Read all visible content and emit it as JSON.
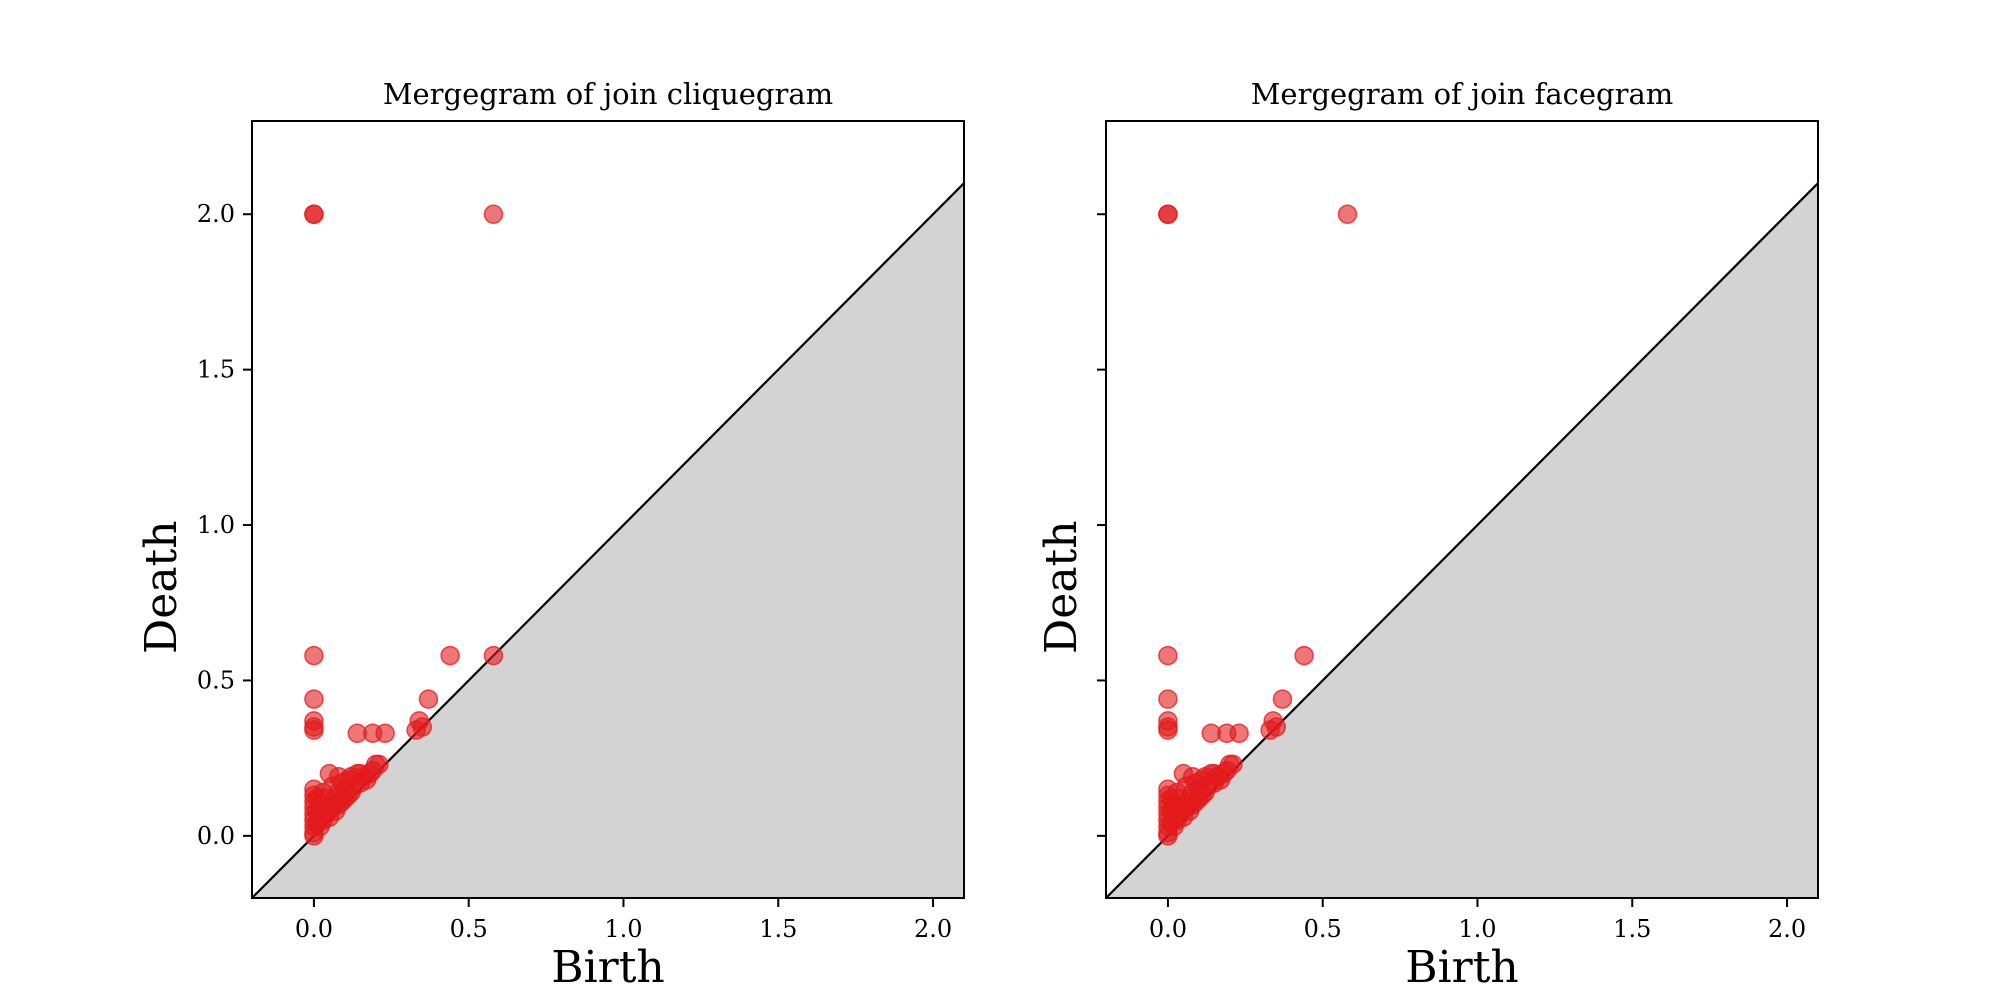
{
  "chart_data": [
    {
      "type": "scatter",
      "title": "Mergegram of join cliquegram",
      "xlabel": "Birth",
      "ylabel": "Death",
      "xlim": [
        -0.2,
        2.1
      ],
      "ylim": [
        -0.2,
        2.3
      ],
      "xticks": [
        0.0,
        0.5,
        1.0,
        1.5,
        2.0
      ],
      "yticks": [
        0.0,
        0.5,
        1.0,
        1.5,
        2.0
      ],
      "xtick_labels": [
        "0.0",
        "0.5",
        "1.0",
        "1.5",
        "2.0"
      ],
      "ytick_labels": [
        "0.0",
        "0.5",
        "1.0",
        "1.5",
        "2.0"
      ],
      "show_ytick_labels": true,
      "diagonal": true,
      "points": [
        [
          0.0,
          2.0
        ],
        [
          0.0,
          2.0
        ],
        [
          0.58,
          2.0
        ],
        [
          0.0,
          0.58
        ],
        [
          0.44,
          0.58
        ],
        [
          0.58,
          0.58
        ],
        [
          0.0,
          0.44
        ],
        [
          0.37,
          0.44
        ],
        [
          0.0,
          0.37
        ],
        [
          0.34,
          0.37
        ],
        [
          0.0,
          0.35
        ],
        [
          0.0,
          0.34
        ],
        [
          0.33,
          0.34
        ],
        [
          0.35,
          0.35
        ],
        [
          0.14,
          0.33
        ],
        [
          0.19,
          0.33
        ],
        [
          0.23,
          0.33
        ],
        [
          0.0,
          0.15
        ],
        [
          0.0,
          0.13
        ],
        [
          0.0,
          0.11
        ],
        [
          0.0,
          0.09
        ],
        [
          0.0,
          0.07
        ],
        [
          0.0,
          0.05
        ],
        [
          0.0,
          0.03
        ],
        [
          0.0,
          0.01
        ],
        [
          0.0,
          0.0
        ],
        [
          0.01,
          0.12
        ],
        [
          0.01,
          0.08
        ],
        [
          0.01,
          0.04
        ],
        [
          0.02,
          0.1
        ],
        [
          0.02,
          0.06
        ],
        [
          0.02,
          0.03
        ],
        [
          0.03,
          0.14
        ],
        [
          0.03,
          0.09
        ],
        [
          0.03,
          0.05
        ],
        [
          0.04,
          0.12
        ],
        [
          0.04,
          0.07
        ],
        [
          0.05,
          0.1
        ],
        [
          0.05,
          0.06
        ],
        [
          0.05,
          0.2
        ],
        [
          0.06,
          0.16
        ],
        [
          0.06,
          0.09
        ],
        [
          0.07,
          0.12
        ],
        [
          0.07,
          0.08
        ],
        [
          0.08,
          0.19
        ],
        [
          0.08,
          0.14
        ],
        [
          0.08,
          0.1
        ],
        [
          0.09,
          0.17
        ],
        [
          0.09,
          0.11
        ],
        [
          0.1,
          0.15
        ],
        [
          0.1,
          0.12
        ],
        [
          0.11,
          0.18
        ],
        [
          0.11,
          0.13
        ],
        [
          0.12,
          0.19
        ],
        [
          0.12,
          0.14
        ],
        [
          0.13,
          0.16
        ],
        [
          0.14,
          0.2
        ],
        [
          0.15,
          0.17
        ],
        [
          0.15,
          0.2
        ],
        [
          0.16,
          0.19
        ],
        [
          0.17,
          0.18
        ],
        [
          0.18,
          0.2
        ],
        [
          0.19,
          0.21
        ],
        [
          0.2,
          0.23
        ],
        [
          0.21,
          0.23
        ]
      ]
    },
    {
      "type": "scatter",
      "title": "Mergegram of join facegram",
      "xlabel": "Birth",
      "ylabel": "Death",
      "xlim": [
        -0.2,
        2.1
      ],
      "ylim": [
        -0.2,
        2.3
      ],
      "xticks": [
        0.0,
        0.5,
        1.0,
        1.5,
        2.0
      ],
      "yticks": [
        0.0,
        0.5,
        1.0,
        1.5,
        2.0
      ],
      "xtick_labels": [
        "0.0",
        "0.5",
        "1.0",
        "1.5",
        "2.0"
      ],
      "ytick_labels": [
        "0.0",
        "0.5",
        "1.0",
        "1.5",
        "2.0"
      ],
      "show_ytick_labels": false,
      "diagonal": true,
      "points": [
        [
          0.0,
          2.0
        ],
        [
          0.0,
          2.0
        ],
        [
          0.58,
          2.0
        ],
        [
          0.0,
          0.58
        ],
        [
          0.44,
          0.58
        ],
        [
          0.0,
          0.44
        ],
        [
          0.37,
          0.44
        ],
        [
          0.0,
          0.37
        ],
        [
          0.34,
          0.37
        ],
        [
          0.0,
          0.35
        ],
        [
          0.0,
          0.34
        ],
        [
          0.33,
          0.34
        ],
        [
          0.35,
          0.35
        ],
        [
          0.14,
          0.33
        ],
        [
          0.19,
          0.33
        ],
        [
          0.23,
          0.33
        ],
        [
          0.0,
          0.15
        ],
        [
          0.0,
          0.13
        ],
        [
          0.0,
          0.11
        ],
        [
          0.0,
          0.09
        ],
        [
          0.0,
          0.07
        ],
        [
          0.0,
          0.05
        ],
        [
          0.0,
          0.03
        ],
        [
          0.0,
          0.01
        ],
        [
          0.0,
          0.0
        ],
        [
          0.01,
          0.12
        ],
        [
          0.01,
          0.08
        ],
        [
          0.01,
          0.04
        ],
        [
          0.02,
          0.1
        ],
        [
          0.02,
          0.06
        ],
        [
          0.02,
          0.03
        ],
        [
          0.03,
          0.14
        ],
        [
          0.03,
          0.09
        ],
        [
          0.03,
          0.05
        ],
        [
          0.04,
          0.12
        ],
        [
          0.04,
          0.07
        ],
        [
          0.05,
          0.1
        ],
        [
          0.05,
          0.06
        ],
        [
          0.05,
          0.2
        ],
        [
          0.06,
          0.16
        ],
        [
          0.06,
          0.09
        ],
        [
          0.07,
          0.12
        ],
        [
          0.07,
          0.08
        ],
        [
          0.08,
          0.19
        ],
        [
          0.08,
          0.14
        ],
        [
          0.08,
          0.1
        ],
        [
          0.09,
          0.17
        ],
        [
          0.09,
          0.11
        ],
        [
          0.1,
          0.15
        ],
        [
          0.1,
          0.12
        ],
        [
          0.11,
          0.18
        ],
        [
          0.11,
          0.13
        ],
        [
          0.12,
          0.19
        ],
        [
          0.12,
          0.14
        ],
        [
          0.13,
          0.16
        ],
        [
          0.14,
          0.2
        ],
        [
          0.15,
          0.17
        ],
        [
          0.15,
          0.2
        ],
        [
          0.16,
          0.19
        ],
        [
          0.17,
          0.18
        ],
        [
          0.18,
          0.2
        ],
        [
          0.19,
          0.21
        ],
        [
          0.2,
          0.23
        ],
        [
          0.21,
          0.23
        ]
      ]
    }
  ],
  "colors": {
    "point": "#e31a1c",
    "diagonal_fill": "#d3d3d3",
    "axes": "#000000",
    "background": "#ffffff"
  }
}
